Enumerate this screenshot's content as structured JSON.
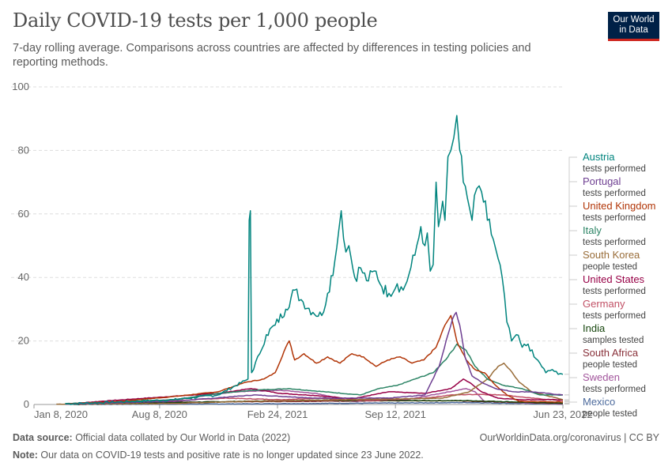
{
  "header": {
    "title": "Daily COVID-19 tests per 1,000 people",
    "subtitle": "7-day rolling average. Comparisons across countries are affected by differences in testing policies and reporting methods.",
    "logo_line1": "Our World",
    "logo_line2": "in Data"
  },
  "footer": {
    "source_label": "Data source:",
    "source_text": " Official data collated by Our World in Data (2022)",
    "credit": "OurWorldinData.org/coronavirus | CC BY",
    "note_label": "Note:",
    "note_text": " Our data on COVID-19 tests and positive rate is no longer updated since 23 June 2022."
  },
  "colors": {
    "grid": "#dddddd",
    "tick_text": "#666666",
    "axis": "#999999"
  },
  "chart_data": {
    "type": "line",
    "title": "Daily COVID-19 tests per 1,000 people",
    "y_ticks": [
      0,
      20,
      40,
      60,
      80,
      100
    ],
    "ylim": [
      0,
      100
    ],
    "xlim": [
      "2020-01-08",
      "2022-06-23"
    ],
    "x_ticks": [
      {
        "label": "Jan 8, 2020",
        "date": "2020-01-08"
      },
      {
        "label": "Aug 8, 2020",
        "date": "2020-08-08"
      },
      {
        "label": "Feb 24, 2021",
        "date": "2021-02-24"
      },
      {
        "label": "Sep 12, 2021",
        "date": "2021-09-12"
      },
      {
        "label": "Jun 23, 2022",
        "date": "2022-06-23"
      }
    ],
    "grid": true,
    "legend_position": "right",
    "series": [
      {
        "name": "Austria",
        "note": "tests performed",
        "color": "#00847e",
        "points": [
          [
            "2020-03-01",
            0.2
          ],
          [
            "2020-06-01",
            0.8
          ],
          [
            "2020-09-01",
            1.5
          ],
          [
            "2020-11-15",
            3
          ],
          [
            "2021-01-05",
            8
          ],
          [
            "2021-01-07",
            58
          ],
          [
            "2021-01-09",
            61
          ],
          [
            "2021-01-11",
            10
          ],
          [
            "2021-01-25",
            16
          ],
          [
            "2021-02-05",
            22
          ],
          [
            "2021-02-20",
            25
          ],
          [
            "2021-03-10",
            30
          ],
          [
            "2021-03-25",
            36
          ],
          [
            "2021-04-05",
            33
          ],
          [
            "2021-04-25",
            29
          ],
          [
            "2021-05-10",
            28
          ],
          [
            "2021-05-20",
            35
          ],
          [
            "2021-06-01",
            45
          ],
          [
            "2021-06-08",
            55
          ],
          [
            "2021-06-12",
            61
          ],
          [
            "2021-06-20",
            48
          ],
          [
            "2021-06-25",
            50
          ],
          [
            "2021-07-05",
            40
          ],
          [
            "2021-07-15",
            43
          ],
          [
            "2021-07-25",
            39
          ],
          [
            "2021-08-10",
            42
          ],
          [
            "2021-08-20",
            37
          ],
          [
            "2021-09-01",
            35
          ],
          [
            "2021-09-15",
            38
          ],
          [
            "2021-09-25",
            36
          ],
          [
            "2021-10-05",
            41
          ],
          [
            "2021-10-15",
            47
          ],
          [
            "2021-10-25",
            56
          ],
          [
            "2021-11-01",
            50
          ],
          [
            "2021-11-05",
            54
          ],
          [
            "2021-11-10",
            42
          ],
          [
            "2021-11-15",
            44
          ],
          [
            "2021-11-20",
            70
          ],
          [
            "2021-11-24",
            56
          ],
          [
            "2021-11-28",
            60
          ],
          [
            "2021-12-01",
            64
          ],
          [
            "2021-12-05",
            58
          ],
          [
            "2021-12-10",
            78
          ],
          [
            "2021-12-15",
            80
          ],
          [
            "2021-12-20",
            84
          ],
          [
            "2021-12-25",
            91
          ],
          [
            "2021-12-30",
            80
          ],
          [
            "2022-01-05",
            70
          ],
          [
            "2022-01-12",
            65
          ],
          [
            "2022-01-20",
            58
          ],
          [
            "2022-01-28",
            68
          ],
          [
            "2022-02-05",
            67
          ],
          [
            "2022-02-15",
            58
          ],
          [
            "2022-02-25",
            52
          ],
          [
            "2022-03-05",
            46
          ],
          [
            "2022-03-12",
            40
          ],
          [
            "2022-03-20",
            26
          ],
          [
            "2022-03-28",
            20
          ],
          [
            "2022-04-05",
            22
          ],
          [
            "2022-04-15",
            18
          ],
          [
            "2022-04-25",
            19
          ],
          [
            "2022-05-05",
            15
          ],
          [
            "2022-05-15",
            13
          ],
          [
            "2022-05-25",
            10
          ],
          [
            "2022-06-05",
            11
          ],
          [
            "2022-06-15",
            9.5
          ],
          [
            "2022-06-23",
            9.5
          ]
        ]
      },
      {
        "name": "Portugal",
        "note": "tests performed",
        "color": "#6d3e91",
        "points": [
          [
            "2020-03-01",
            0.1
          ],
          [
            "2020-09-01",
            1
          ],
          [
            "2021-01-15",
            3
          ],
          [
            "2021-05-01",
            2
          ],
          [
            "2021-09-01",
            2
          ],
          [
            "2021-11-01",
            3
          ],
          [
            "2021-11-25",
            12
          ],
          [
            "2021-12-10",
            22
          ],
          [
            "2021-12-18",
            27
          ],
          [
            "2021-12-24",
            29
          ],
          [
            "2021-12-30",
            25
          ],
          [
            "2022-01-08",
            15
          ],
          [
            "2022-01-20",
            9
          ],
          [
            "2022-02-05",
            7
          ],
          [
            "2022-03-01",
            5
          ],
          [
            "2022-04-01",
            4
          ],
          [
            "2022-05-01",
            4
          ],
          [
            "2022-06-23",
            3
          ]
        ]
      },
      {
        "name": "United Kingdom",
        "note": "tests performed",
        "color": "#b13507",
        "points": [
          [
            "2020-03-01",
            0.2
          ],
          [
            "2020-06-01",
            1
          ],
          [
            "2020-09-01",
            2.5
          ],
          [
            "2020-11-15",
            4
          ],
          [
            "2021-01-01",
            7
          ],
          [
            "2021-02-01",
            8
          ],
          [
            "2021-02-20",
            10
          ],
          [
            "2021-03-10",
            18
          ],
          [
            "2021-03-16",
            20
          ],
          [
            "2021-03-25",
            14
          ],
          [
            "2021-04-10",
            16
          ],
          [
            "2021-05-01",
            13
          ],
          [
            "2021-05-20",
            15
          ],
          [
            "2021-06-10",
            13
          ],
          [
            "2021-06-30",
            16
          ],
          [
            "2021-07-20",
            15
          ],
          [
            "2021-08-10",
            12
          ],
          [
            "2021-08-30",
            14
          ],
          [
            "2021-09-20",
            15
          ],
          [
            "2021-10-10",
            13
          ],
          [
            "2021-10-30",
            14
          ],
          [
            "2021-11-20",
            18
          ],
          [
            "2021-12-05",
            25
          ],
          [
            "2021-12-15",
            28
          ],
          [
            "2021-12-25",
            20
          ],
          [
            "2022-01-10",
            14
          ],
          [
            "2022-01-25",
            11
          ],
          [
            "2022-02-10",
            10
          ],
          [
            "2022-03-01",
            6
          ],
          [
            "2022-03-20",
            3
          ],
          [
            "2022-04-10",
            1
          ],
          [
            "2022-06-23",
            0.8
          ]
        ]
      },
      {
        "name": "Italy",
        "note": "tests performed",
        "color": "#2c8465",
        "points": [
          [
            "2020-03-01",
            0.3
          ],
          [
            "2020-09-01",
            1.5
          ],
          [
            "2020-11-15",
            3.5
          ],
          [
            "2021-01-15",
            4.5
          ],
          [
            "2021-03-15",
            5
          ],
          [
            "2021-05-15",
            4
          ],
          [
            "2021-07-15",
            3
          ],
          [
            "2021-08-15",
            5
          ],
          [
            "2021-09-15",
            6
          ],
          [
            "2021-10-15",
            8
          ],
          [
            "2021-11-15",
            10
          ],
          [
            "2021-12-10",
            15
          ],
          [
            "2021-12-25",
            19
          ],
          [
            "2022-01-10",
            17
          ],
          [
            "2022-01-25",
            12
          ],
          [
            "2022-02-15",
            8
          ],
          [
            "2022-03-15",
            6
          ],
          [
            "2022-04-15",
            5
          ],
          [
            "2022-05-15",
            3
          ],
          [
            "2022-06-23",
            3
          ]
        ]
      },
      {
        "name": "South Korea",
        "note": "people tested",
        "color": "#996d39",
        "points": [
          [
            "2020-02-15",
            0.1
          ],
          [
            "2020-09-01",
            0.3
          ],
          [
            "2021-01-01",
            1
          ],
          [
            "2021-07-01",
            1.5
          ],
          [
            "2021-12-01",
            2
          ],
          [
            "2022-01-15",
            4
          ],
          [
            "2022-02-15",
            8
          ],
          [
            "2022-03-05",
            12
          ],
          [
            "2022-03-15",
            13
          ],
          [
            "2022-03-25",
            11
          ],
          [
            "2022-04-10",
            7
          ],
          [
            "2022-05-01",
            4
          ],
          [
            "2022-06-23",
            1.5
          ]
        ]
      },
      {
        "name": "United States",
        "note": "tests performed",
        "color": "#970046",
        "points": [
          [
            "2020-03-01",
            0.1
          ],
          [
            "2020-05-01",
            1
          ],
          [
            "2020-08-01",
            2.2
          ],
          [
            "2020-11-15",
            3.5
          ],
          [
            "2021-01-10",
            5
          ],
          [
            "2021-03-01",
            3.5
          ],
          [
            "2021-05-01",
            2.8
          ],
          [
            "2021-07-01",
            1.8
          ],
          [
            "2021-09-01",
            4
          ],
          [
            "2021-11-01",
            3.5
          ],
          [
            "2021-12-15",
            5
          ],
          [
            "2022-01-05",
            8
          ],
          [
            "2022-01-15",
            7
          ],
          [
            "2022-02-05",
            4
          ],
          [
            "2022-03-05",
            2
          ],
          [
            "2022-04-15",
            1.5
          ],
          [
            "2022-06-23",
            1.5
          ]
        ]
      },
      {
        "name": "Germany",
        "note": "tests performed",
        "color": "#c15065",
        "points": [
          [
            "2020-03-01",
            0.1
          ],
          [
            "2020-09-01",
            1.2
          ],
          [
            "2020-12-01",
            2
          ],
          [
            "2021-03-01",
            1.5
          ],
          [
            "2021-05-01",
            2
          ],
          [
            "2021-08-01",
            1.2
          ],
          [
            "2021-11-01",
            2
          ],
          [
            "2021-12-15",
            3
          ],
          [
            "2022-02-01",
            3.2
          ],
          [
            "2022-03-15",
            3
          ],
          [
            "2022-05-01",
            2
          ],
          [
            "2022-06-23",
            1.2
          ]
        ]
      },
      {
        "name": "India",
        "note": "samples tested",
        "color": "#18470f",
        "points": [
          [
            "2020-03-15",
            0.05
          ],
          [
            "2020-08-01",
            0.5
          ],
          [
            "2020-11-01",
            0.8
          ],
          [
            "2021-05-01",
            1.4
          ],
          [
            "2021-09-01",
            1.2
          ],
          [
            "2022-01-15",
            1.2
          ],
          [
            "2022-06-23",
            0.4
          ]
        ]
      },
      {
        "name": "South Africa",
        "note": "people tested",
        "color": "#883039",
        "points": [
          [
            "2020-03-15",
            0.05
          ],
          [
            "2020-08-01",
            0.7
          ],
          [
            "2021-01-15",
            0.9
          ],
          [
            "2021-07-01",
            1.1
          ],
          [
            "2021-12-15",
            1.2
          ],
          [
            "2022-06-23",
            0.3
          ]
        ]
      },
      {
        "name": "Sweden",
        "note": "tests performed",
        "color": "#a2559c",
        "points": [
          [
            "2020-03-15",
            0.1
          ],
          [
            "2020-09-01",
            1.5
          ],
          [
            "2020-12-15",
            4
          ],
          [
            "2021-03-01",
            4.5
          ],
          [
            "2021-05-01",
            3.5
          ],
          [
            "2021-07-01",
            1
          ],
          [
            "2021-10-01",
            1.5
          ],
          [
            "2022-01-10",
            5
          ],
          [
            "2022-01-25",
            4
          ],
          [
            "2022-02-10",
            1
          ],
          [
            "2022-06-23",
            0.2
          ]
        ]
      },
      {
        "name": "Mexico",
        "note": "people tested",
        "color": "#4c6a9c",
        "points": [
          [
            "2020-03-15",
            0.01
          ],
          [
            "2020-08-01",
            0.1
          ],
          [
            "2021-01-15",
            0.2
          ],
          [
            "2022-01-15",
            0.6
          ],
          [
            "2022-06-23",
            0.1
          ]
        ]
      }
    ]
  }
}
